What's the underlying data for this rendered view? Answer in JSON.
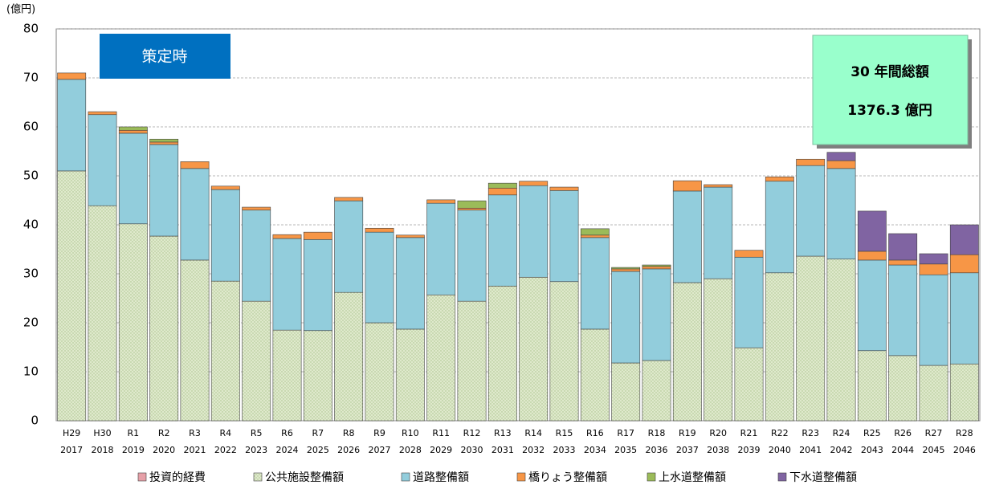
{
  "chart_data": {
    "type": "stacked_bar",
    "y_label": "(億円)",
    "annotations": [
      "策定時",
      "30 年間総額",
      "1376.3 億円"
    ],
    "categories": [
      [
        "H29",
        "2017"
      ],
      [
        "H30",
        "2018"
      ],
      [
        "R1",
        "2019"
      ],
      [
        "R2",
        "2020"
      ],
      [
        "R3",
        "2021"
      ],
      [
        "R4",
        "2022"
      ],
      [
        "R5",
        "2023"
      ],
      [
        "R6",
        "2024"
      ],
      [
        "R7",
        "2025"
      ],
      [
        "R8",
        "2026"
      ],
      [
        "R9",
        "2027"
      ],
      [
        "R10",
        "2028"
      ],
      [
        "R11",
        "2029"
      ],
      [
        "R12",
        "2030"
      ],
      [
        "R13",
        "2031"
      ],
      [
        "R14",
        "2032"
      ],
      [
        "R15",
        "2033"
      ],
      [
        "R16",
        "2034"
      ],
      [
        "R17",
        "2035"
      ],
      [
        "R18",
        "2036"
      ],
      [
        "R19",
        "2037"
      ],
      [
        "R20",
        "2038"
      ],
      [
        "R21",
        "2039"
      ],
      [
        "R22",
        "2040"
      ],
      [
        "R23",
        "2041"
      ],
      [
        "R24",
        "2042"
      ],
      [
        "R25",
        "2043"
      ],
      [
        "R26",
        "2044"
      ],
      [
        "R27",
        "2045"
      ],
      [
        "R28",
        "2046"
      ]
    ],
    "series": [
      {
        "name": "投資的経費",
        "color": "#e6a0a8",
        "values": [
          0,
          0,
          0,
          0,
          0,
          0,
          0,
          0,
          0,
          0,
          0,
          0,
          0,
          0,
          0,
          0,
          0,
          0,
          0,
          0,
          0,
          0,
          0,
          0,
          0,
          0,
          0,
          0,
          0,
          0
        ]
      },
      {
        "name": "公共施設整備額",
        "color": "#dfe9cc",
        "values": [
          51.0,
          43.9,
          40.2,
          37.7,
          32.8,
          28.5,
          24.4,
          18.5,
          18.4,
          26.2,
          20.0,
          18.7,
          25.7,
          24.4,
          27.5,
          29.3,
          28.4,
          18.7,
          11.8,
          12.3,
          28.2,
          29.0,
          14.9,
          30.2,
          33.6,
          33.0,
          14.3,
          13.3,
          11.3,
          11.6
        ]
      },
      {
        "name": "道路整備額",
        "color": "#92cddc",
        "values": [
          18.7,
          18.6,
          18.5,
          18.7,
          18.7,
          18.7,
          18.6,
          18.7,
          18.6,
          18.7,
          18.5,
          18.7,
          18.7,
          18.6,
          18.6,
          18.7,
          18.6,
          18.7,
          18.7,
          18.7,
          18.7,
          18.7,
          18.5,
          18.7,
          18.5,
          18.5,
          18.5,
          18.5,
          18.5,
          18.6
        ]
      },
      {
        "name": "橋りょう整備額",
        "color": "#f79646",
        "values": [
          1.3,
          0.6,
          0.6,
          0.5,
          1.4,
          0.7,
          0.6,
          0.8,
          1.5,
          0.7,
          0.8,
          0.5,
          0.7,
          0.4,
          1.4,
          0.9,
          0.7,
          0.5,
          0.5,
          0.5,
          2.1,
          0.5,
          1.4,
          0.9,
          1.3,
          1.6,
          1.8,
          1.0,
          2.2,
          3.7
        ]
      },
      {
        "name": "上水道整備額",
        "color": "#9bbb59",
        "values": [
          0,
          0,
          0.7,
          0.6,
          0,
          0,
          0,
          0,
          0,
          0,
          0,
          0,
          0,
          1.5,
          1.0,
          0,
          0,
          1.3,
          0.3,
          0.3,
          0,
          0,
          0,
          0,
          0,
          0,
          0,
          0,
          0,
          0
        ]
      },
      {
        "name": "下水道整備額",
        "color": "#8064a2",
        "values": [
          0,
          0,
          0,
          0,
          0,
          0,
          0,
          0,
          0,
          0,
          0,
          0,
          0,
          0,
          0,
          0,
          0,
          0,
          0,
          0,
          0,
          0,
          0,
          0,
          0,
          1.7,
          8.2,
          5.4,
          2.1,
          6.1
        ]
      }
    ],
    "ylim": [
      0,
      80
    ],
    "yticks": [
      0,
      10,
      20,
      30,
      40,
      50,
      60,
      70,
      80
    ],
    "grid": true
  }
}
